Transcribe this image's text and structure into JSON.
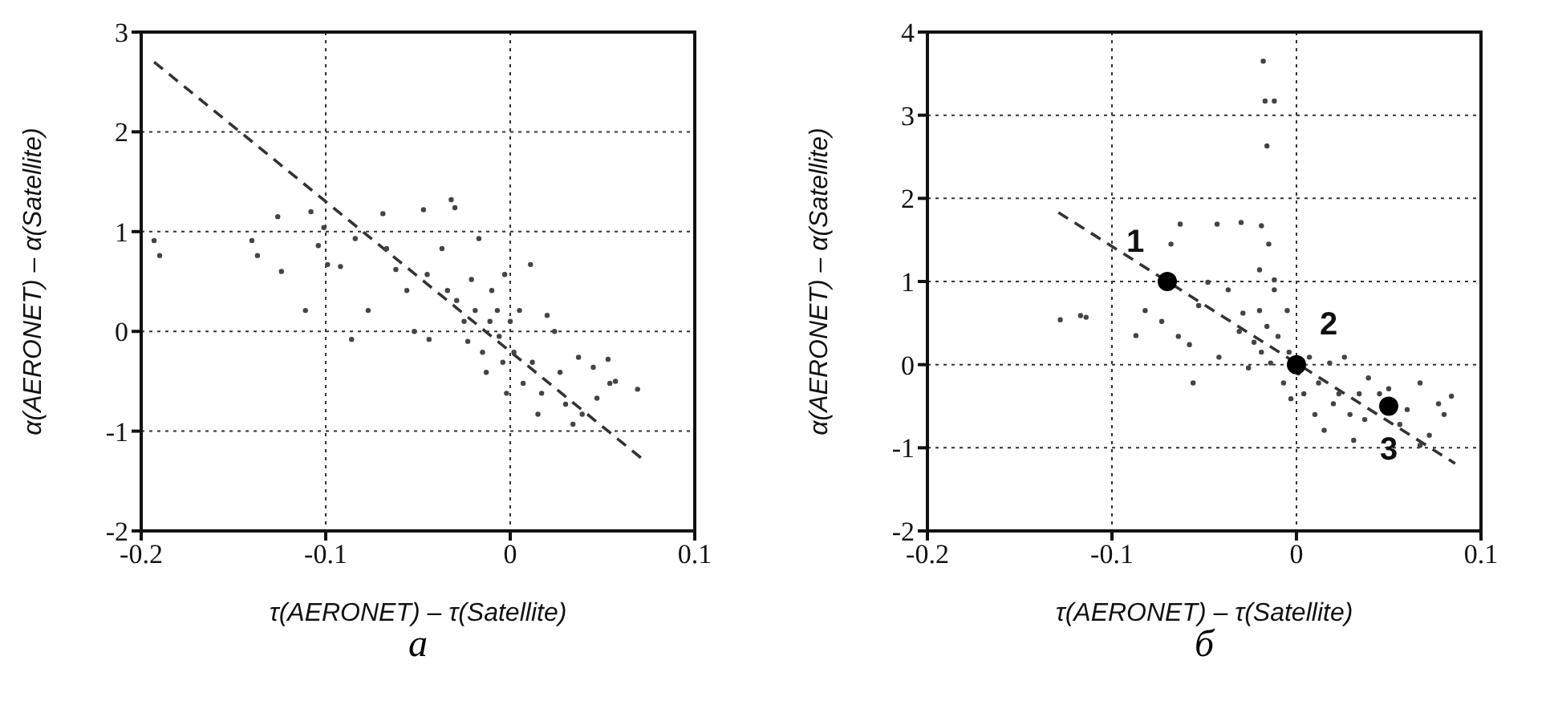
{
  "chart_data": [
    {
      "type": "scatter",
      "xlabel": "τ(AERONET) – τ(Satellite)",
      "ylabel": "α(AERONET) – α(Satellite)",
      "xlim": [
        -0.2,
        0.1
      ],
      "ylim": [
        -2,
        3
      ],
      "xticks": [
        -0.2,
        -0.1,
        0,
        0.1
      ],
      "yticks": [
        -2,
        -1,
        0,
        1,
        2,
        3
      ],
      "grid": true,
      "annotations": [
        "а"
      ],
      "series": [
        {
          "type": "scatter",
          "marker": "circle",
          "color": "#444444",
          "x": [
            -0.193,
            -0.19,
            -0.14,
            -0.137,
            -0.124,
            -0.126,
            -0.111,
            -0.108,
            -0.104,
            -0.101,
            -0.099,
            -0.092,
            -0.086,
            -0.084,
            -0.077,
            -0.069,
            -0.067,
            -0.062,
            -0.056,
            -0.052,
            -0.047,
            -0.045,
            -0.044,
            -0.037,
            -0.032,
            -0.03,
            -0.034,
            -0.029,
            -0.025,
            -0.023,
            -0.021,
            -0.019,
            -0.017,
            -0.015,
            -0.013,
            -0.011,
            -0.01,
            -0.007,
            -0.006,
            -0.004,
            -0.003,
            -0.002,
            0.0,
            0.002,
            0.005,
            0.007,
            0.011,
            0.012,
            0.015,
            0.017,
            0.02,
            0.024,
            0.027,
            0.03,
            0.034,
            0.037,
            0.039,
            0.045,
            0.047,
            0.053,
            0.054,
            0.057,
            0.069
          ],
          "values": [
            0.91,
            0.76,
            0.91,
            0.76,
            0.6,
            1.15,
            0.21,
            1.2,
            0.86,
            1.04,
            0.67,
            0.65,
            -0.08,
            0.93,
            0.21,
            1.18,
            0.83,
            0.62,
            0.41,
            0.0,
            1.22,
            0.57,
            -0.08,
            0.83,
            1.32,
            1.24,
            0.41,
            0.31,
            0.1,
            -0.1,
            0.52,
            0.21,
            0.93,
            -0.21,
            -0.41,
            0.1,
            0.41,
            0.21,
            -0.05,
            -0.31,
            0.57,
            -0.62,
            0.1,
            -0.21,
            0.21,
            -0.52,
            0.67,
            -0.31,
            -0.83,
            -0.62,
            0.16,
            0.0,
            -0.41,
            -0.73,
            -0.93,
            -0.26,
            -0.83,
            -0.36,
            -0.67,
            -0.28,
            -0.52,
            -0.5,
            -0.58
          ]
        },
        {
          "type": "line",
          "line_style": "dashed",
          "color": "#333333",
          "x": [
            -0.193,
            0.073
          ],
          "values": [
            2.7,
            -1.3
          ]
        }
      ]
    },
    {
      "type": "scatter",
      "xlabel": "τ(AERONET) – τ(Satellite)",
      "ylabel": "α(AERONET) – α(Satellite)",
      "xlim": [
        -0.2,
        0.1
      ],
      "ylim": [
        -2,
        4
      ],
      "xticks": [
        -0.2,
        -0.1,
        0,
        0.1
      ],
      "yticks": [
        -2,
        -1,
        0,
        1,
        2,
        3,
        4
      ],
      "grid": true,
      "annotations": [
        "б",
        {
          "text": "1",
          "x": -0.07,
          "y": 1
        },
        {
          "text": "2",
          "x": 0,
          "y": 0
        },
        {
          "text": "3",
          "x": 0.05,
          "y": -0.5
        }
      ],
      "series": [
        {
          "type": "scatter",
          "marker": "circle",
          "color": "#444444",
          "x": [
            -0.018,
            -0.017,
            -0.012,
            -0.016,
            -0.063,
            -0.043,
            -0.068,
            -0.03,
            -0.019,
            -0.015,
            -0.02,
            -0.012,
            -0.128,
            -0.117,
            -0.114,
            -0.087,
            -0.082,
            -0.073,
            -0.064,
            -0.058,
            -0.056,
            -0.053,
            -0.048,
            -0.042,
            -0.037,
            -0.031,
            -0.029,
            -0.026,
            -0.023,
            -0.02,
            -0.019,
            -0.016,
            -0.014,
            -0.012,
            -0.01,
            -0.007,
            -0.005,
            -0.004,
            -0.003,
            0.001,
            0.004,
            0.007,
            0.01,
            0.012,
            0.015,
            0.018,
            0.02,
            0.023,
            0.026,
            0.029,
            0.031,
            0.034,
            0.037,
            0.039,
            0.045,
            0.05,
            0.056,
            0.06,
            0.067,
            0.067,
            0.072,
            0.077,
            0.08,
            0.084
          ],
          "values": [
            3.65,
            3.17,
            3.17,
            2.63,
            1.69,
            1.69,
            1.45,
            1.71,
            1.67,
            1.45,
            1.14,
            1.02,
            0.54,
            0.59,
            0.57,
            0.35,
            0.65,
            0.52,
            0.34,
            0.24,
            -0.22,
            0.71,
            0.99,
            0.09,
            0.9,
            0.4,
            0.62,
            -0.04,
            0.27,
            0.65,
            0.15,
            0.46,
            0.02,
            0.9,
            0.34,
            -0.22,
            0.65,
            0.15,
            -0.41,
            -0.1,
            -0.35,
            0.09,
            -0.6,
            -0.22,
            -0.79,
            0.02,
            -0.47,
            -0.35,
            0.09,
            -0.6,
            -0.91,
            -0.35,
            -0.66,
            -0.16,
            -0.35,
            -0.29,
            -0.72,
            -0.54,
            -0.22,
            -0.97,
            -0.85,
            -0.47,
            -0.6,
            -0.38
          ]
        },
        {
          "type": "line",
          "line_style": "dashed",
          "color": "#333333",
          "x": [
            -0.129,
            0.086
          ],
          "values": [
            1.83,
            -1.19
          ]
        },
        {
          "type": "scatter",
          "marker": "circle",
          "color": "#000000",
          "x": [
            -0.07,
            0,
            0.05
          ],
          "values": [
            1,
            0,
            -0.5
          ]
        }
      ]
    }
  ]
}
